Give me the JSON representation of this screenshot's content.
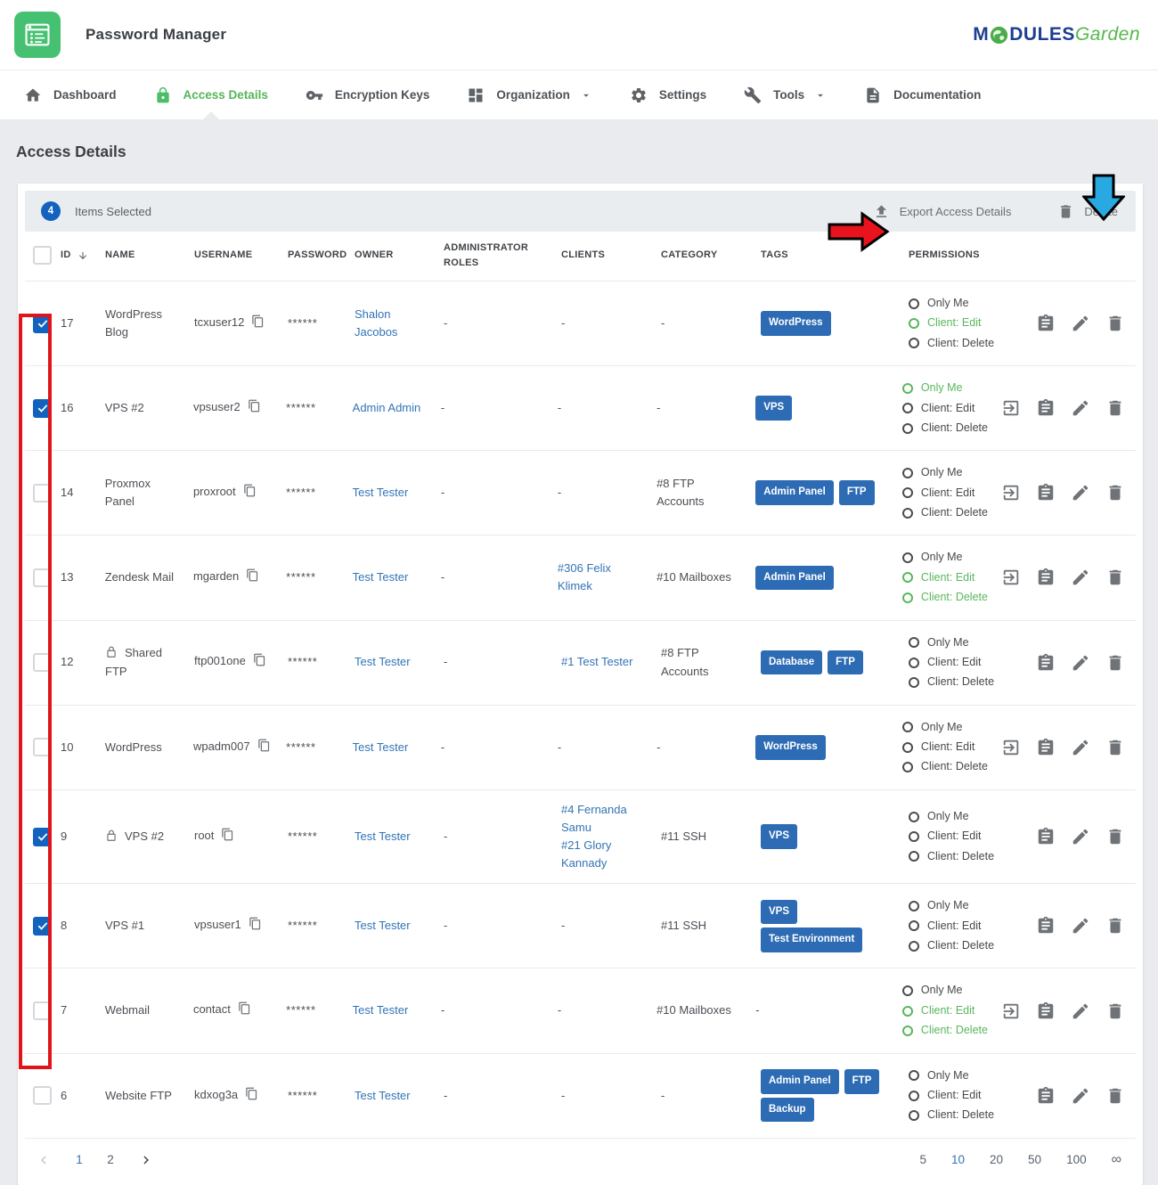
{
  "header": {
    "app_title": "Password Manager",
    "logo_m": "M",
    "logo_dules": "DULES",
    "logo_garden": "Garden"
  },
  "nav": {
    "items": [
      {
        "label": "Dashboard",
        "icon": "home",
        "active": false,
        "dropdown": false
      },
      {
        "label": "Access Details",
        "icon": "lock",
        "active": true,
        "dropdown": false
      },
      {
        "label": "Encryption Keys",
        "icon": "key",
        "active": false,
        "dropdown": false
      },
      {
        "label": "Organization",
        "icon": "dashboard",
        "active": false,
        "dropdown": true
      },
      {
        "label": "Settings",
        "icon": "gear",
        "active": false,
        "dropdown": false
      },
      {
        "label": "Tools",
        "icon": "wrench",
        "active": false,
        "dropdown": true
      },
      {
        "label": "Documentation",
        "icon": "document",
        "active": false,
        "dropdown": false
      }
    ]
  },
  "page": {
    "title": "Access Details"
  },
  "toolbar": {
    "selected_count": "4",
    "selected_label": "Items Selected",
    "export_label": "Export Access Details",
    "delete_label": "Delete"
  },
  "table": {
    "headers": {
      "id": "ID",
      "name": "NAME",
      "username": "USERNAME",
      "password": "PASSWORD",
      "owner": "OWNER",
      "roles": "ADMINISTRATOR ROLES",
      "clients": "CLIENTS",
      "category": "CATEGORY",
      "tags": "TAGS",
      "permissions": "PERMISSIONS"
    },
    "rows": [
      {
        "id": "17",
        "checked": true,
        "locked": false,
        "name": "WordPress Blog",
        "username": "tcxuser12",
        "password": "******",
        "owner": "Shalon Jacobos",
        "roles": "-",
        "clients": [],
        "category": "-",
        "tags": [
          "WordPress"
        ],
        "permissions": [
          {
            "label": "Only Me",
            "active": false
          },
          {
            "label": "Client: Edit",
            "active": true
          },
          {
            "label": "Client: Delete",
            "active": false
          }
        ],
        "actions": [
          "clipboard",
          "edit",
          "delete"
        ]
      },
      {
        "id": "16",
        "checked": true,
        "locked": false,
        "name": "VPS #2",
        "username": "vpsuser2",
        "password": "******",
        "owner": "Admin Admin",
        "roles": "-",
        "clients": [],
        "category": "-",
        "tags": [
          "VPS"
        ],
        "permissions": [
          {
            "label": "Only Me",
            "active": true
          },
          {
            "label": "Client: Edit",
            "active": false
          },
          {
            "label": "Client: Delete",
            "active": false
          }
        ],
        "actions": [
          "login",
          "clipboard",
          "edit",
          "delete"
        ]
      },
      {
        "id": "14",
        "checked": false,
        "locked": false,
        "name": "Proxmox Panel",
        "username": "proxroot",
        "password": "******",
        "owner": "Test Tester",
        "roles": "-",
        "clients": [],
        "category": "#8 FTP Accounts",
        "tags": [
          "Admin Panel",
          "FTP"
        ],
        "permissions": [
          {
            "label": "Only Me",
            "active": false
          },
          {
            "label": "Client: Edit",
            "active": false
          },
          {
            "label": "Client: Delete",
            "active": false
          }
        ],
        "actions": [
          "login",
          "clipboard",
          "edit",
          "delete"
        ]
      },
      {
        "id": "13",
        "checked": false,
        "locked": false,
        "name": "Zendesk Mail",
        "username": "mgarden",
        "password": "******",
        "owner": "Test Tester",
        "roles": "-",
        "clients": [
          "#306 Felix Klimek"
        ],
        "category": "#10 Mailboxes",
        "tags": [
          "Admin Panel"
        ],
        "permissions": [
          {
            "label": "Only Me",
            "active": false
          },
          {
            "label": "Client: Edit",
            "active": true
          },
          {
            "label": "Client: Delete",
            "active": true
          }
        ],
        "actions": [
          "login",
          "clipboard",
          "edit",
          "delete"
        ]
      },
      {
        "id": "12",
        "checked": false,
        "locked": true,
        "name": "Shared FTP",
        "username": "ftp001one",
        "password": "******",
        "owner": "Test Tester",
        "roles": "-",
        "clients": [
          "#1 Test Tester"
        ],
        "category": "#8 FTP Accounts",
        "tags": [
          "Database",
          "FTP"
        ],
        "permissions": [
          {
            "label": "Only Me",
            "active": false
          },
          {
            "label": "Client: Edit",
            "active": false
          },
          {
            "label": "Client: Delete",
            "active": false
          }
        ],
        "actions": [
          "clipboard",
          "edit",
          "delete"
        ]
      },
      {
        "id": "10",
        "checked": false,
        "locked": false,
        "name": "WordPress",
        "username": "wpadm007",
        "password": "******",
        "owner": "Test Tester",
        "roles": "-",
        "clients": [],
        "category": "-",
        "tags": [
          "WordPress"
        ],
        "permissions": [
          {
            "label": "Only Me",
            "active": false
          },
          {
            "label": "Client: Edit",
            "active": false
          },
          {
            "label": "Client: Delete",
            "active": false
          }
        ],
        "actions": [
          "login",
          "clipboard",
          "edit",
          "delete"
        ]
      },
      {
        "id": "9",
        "checked": true,
        "locked": true,
        "name": "VPS #2",
        "username": "root",
        "password": "******",
        "owner": "Test Tester",
        "roles": "-",
        "clients": [
          "#4 Fernanda Samu",
          "#21 Glory Kannady"
        ],
        "category": "#11 SSH",
        "tags": [
          "VPS"
        ],
        "permissions": [
          {
            "label": "Only Me",
            "active": false
          },
          {
            "label": "Client: Edit",
            "active": false
          },
          {
            "label": "Client: Delete",
            "active": false
          }
        ],
        "actions": [
          "clipboard",
          "edit",
          "delete"
        ]
      },
      {
        "id": "8",
        "checked": true,
        "locked": false,
        "name": "VPS #1",
        "username": "vpsuser1",
        "password": "******",
        "owner": "Test Tester",
        "roles": "-",
        "clients": [],
        "category": "#11 SSH",
        "tags": [
          "VPS",
          "Test Environment"
        ],
        "permissions": [
          {
            "label": "Only Me",
            "active": false
          },
          {
            "label": "Client: Edit",
            "active": false
          },
          {
            "label": "Client: Delete",
            "active": false
          }
        ],
        "actions": [
          "clipboard",
          "edit",
          "delete"
        ]
      },
      {
        "id": "7",
        "checked": false,
        "locked": false,
        "name": "Webmail",
        "username": "contact",
        "password": "******",
        "owner": "Test Tester",
        "roles": "-",
        "clients": [],
        "category": "#10 Mailboxes",
        "tags": [],
        "permissions": [
          {
            "label": "Only Me",
            "active": false
          },
          {
            "label": "Client: Edit",
            "active": true
          },
          {
            "label": "Client: Delete",
            "active": true
          }
        ],
        "actions": [
          "login",
          "clipboard",
          "edit",
          "delete"
        ]
      },
      {
        "id": "6",
        "checked": false,
        "locked": false,
        "name": "Website FTP",
        "username": "kdxog3a",
        "password": "******",
        "owner": "Test Tester",
        "roles": "-",
        "clients": [],
        "category": "-",
        "tags": [
          "Admin Panel",
          "FTP",
          "Backup"
        ],
        "permissions": [
          {
            "label": "Only Me",
            "active": false
          },
          {
            "label": "Client: Edit",
            "active": false
          },
          {
            "label": "Client: Delete",
            "active": false
          }
        ],
        "actions": [
          "clipboard",
          "edit",
          "delete"
        ]
      }
    ],
    "empty_value": "-"
  },
  "pagination": {
    "pages": [
      "1",
      "2"
    ],
    "active_page": "1",
    "sizes": [
      "5",
      "10",
      "20",
      "50",
      "100",
      "∞"
    ],
    "active_size": "10"
  },
  "colors": {
    "brand_green": "#46c171",
    "nav_active_green": "#55b559",
    "permission_green": "#58b75c",
    "tag_blue": "#2d6cb4",
    "link_blue": "#3274b5",
    "checkbox_blue": "#1362be",
    "annotation_red": "#e0151b",
    "annotation_blue": "#29a9e1",
    "logo_navy": "#1d3e92",
    "logo_green": "#55b84a"
  }
}
